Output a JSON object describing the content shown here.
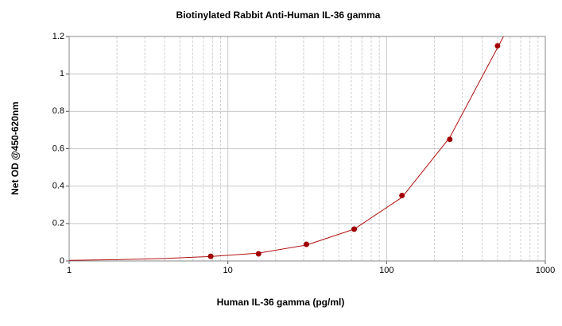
{
  "chart_data": {
    "type": "scatter",
    "title": "Biotinylated Rabbit Anti-Human IL-36 gamma",
    "x_label": "Human IL-36 gamma (pg/ml)",
    "y_label": "Net OD @450-620nm",
    "x": [
      7.8,
      15.6,
      31.25,
      62.5,
      125,
      250,
      500
    ],
    "series": [
      {
        "color": "#a00000",
        "values": [
          0.025,
          0.038,
          0.089,
          0.17,
          0.35,
          0.65,
          1.15
        ]
      }
    ],
    "fit": {
      "color": "#b01010",
      "x": [
        1,
        2,
        4,
        7.8,
        15.6,
        31.25,
        62.5,
        125,
        250,
        500,
        545
      ],
      "values": [
        0.003,
        0.007,
        0.013,
        0.024,
        0.042,
        0.085,
        0.17,
        0.34,
        0.66,
        1.14,
        1.2
      ]
    },
    "xlog": true,
    "xlim": [
      1,
      1000
    ],
    "xticks": [
      1,
      10,
      100,
      1000
    ],
    "ylim": [
      0,
      1.2
    ],
    "yticks": [
      0,
      0.2,
      0.4,
      0.6,
      0.8,
      1,
      1.2
    ],
    "grid": true
  }
}
